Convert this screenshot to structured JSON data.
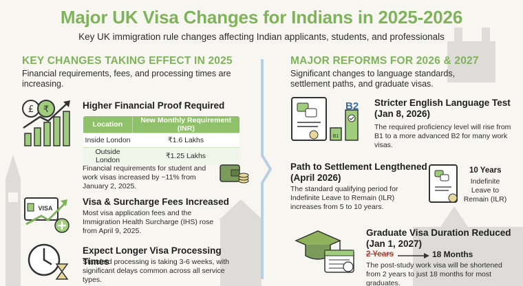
{
  "header": {
    "title": "Major UK Visa Changes for Indians in 2025-2026",
    "subtitle": "Key UK immigration rule changes affecting Indian applicants, students, and professionals"
  },
  "left": {
    "section_title": "KEY CHANGES TAKING EFFECT IN 2025",
    "section_desc": "Financial requirements, fees, and processing times are increasing.",
    "items": [
      {
        "title": "Higher Financial Proof Required",
        "table": {
          "headers": [
            "Location",
            "New Monthly Requirement (INR)"
          ],
          "rows": [
            [
              "Inside London",
              "₹1.6 Lakhs"
            ],
            [
              "Outside London",
              "₹1.25 Lakhs"
            ]
          ]
        },
        "desc": "Financial requirements for student and work visas increased by ~11% from January 2, 2025."
      },
      {
        "title": "Visa & Surcharge Fees Increased",
        "desc": "Most visa application fees and the Immigration Health Surcharge (IHS) rose from April 9, 2025.",
        "icon_text": "VISA"
      },
      {
        "title": "Expect Longer Visa Processing Times",
        "desc": "Standard processing is taking 3-6 weeks, with significant delays common across all service types."
      }
    ]
  },
  "right": {
    "section_title": "MAJOR REFORMS FOR 2026 & 2027",
    "section_desc": "Significant changes to language standards, settlement paths, and graduate visas.",
    "items": [
      {
        "title": "Stricter English Language Test (Jan 8, 2026)",
        "desc": "The required proficiency level will rise from B1 to a more advanced B2 for many work visas.",
        "badge_b2": "B2",
        "badge_b1": "B1"
      },
      {
        "title": "Path to Settlement Lengthened (April 2026)",
        "desc": "The standard qualifying period for Indefinite Leave to Remain (ILR) increases from 5 to 10 years.",
        "side_value": "10 Years",
        "side_label": "Indefinite Leave to Remain (ILR)"
      },
      {
        "title": "Graduate Visa Duration Reduced (Jan 1, 2027)",
        "old_value": "2 Years",
        "new_value": "18 Months",
        "desc": "The post-study work visa will be shortened from 2 years to just 18 months for most graduates."
      }
    ]
  },
  "colors": {
    "accent": "#7fb35a",
    "table_header": "#8fc16a",
    "strike_red": "#c0392b"
  }
}
